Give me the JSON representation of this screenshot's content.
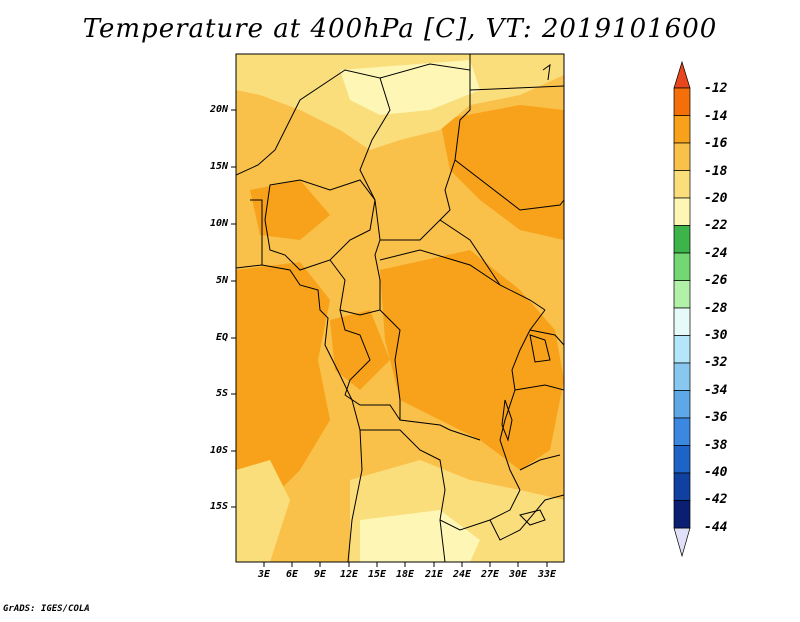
{
  "title": "Temperature at 400hPa [C], VT: 2019101600",
  "credit": "GrADS: IGES/COLA",
  "map": {
    "variable": "Temperature at 400hPa",
    "units": "C",
    "valid_time": "2019101600",
    "lat_labels": [
      "20N",
      "15N",
      "10N",
      "5N",
      "EQ",
      "5S",
      "10S",
      "15S"
    ],
    "lon_labels": [
      "3E",
      "6E",
      "9E",
      "12E",
      "15E",
      "18E",
      "21E",
      "24E",
      "27E",
      "30E",
      "33E"
    ]
  },
  "colorbar": {
    "labels": [
      "-12",
      "-14",
      "-16",
      "-18",
      "-20",
      "-22",
      "-24",
      "-26",
      "-28",
      "-30",
      "-32",
      "-34",
      "-36",
      "-38",
      "-40",
      "-42",
      "-44"
    ],
    "colors": [
      "#e8461c",
      "#f46e0a",
      "#f7a21a",
      "#f9c04a",
      "#fbde7c",
      "#fdf6b4",
      "#3cb44a",
      "#73d873",
      "#b2f2a8",
      "#e6fafa",
      "#b2e6f8",
      "#88c8f0",
      "#5ea8e8",
      "#3c88e0",
      "#1e64c8",
      "#1040a0",
      "#0a1e72"
    ],
    "top_color": "#e8461c",
    "bottom_color": "#e0e0f8"
  }
}
